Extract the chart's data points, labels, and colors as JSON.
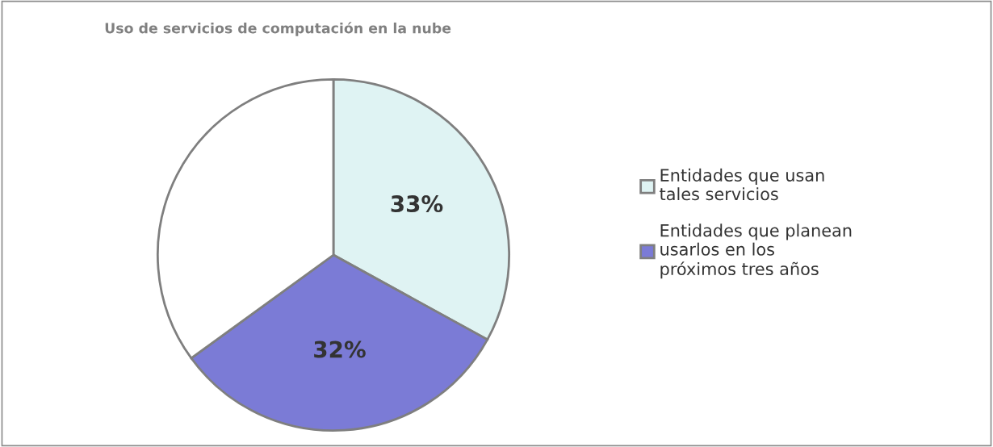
{
  "chart_data": {
    "type": "pie",
    "title": "Uso de servicios de computación en la nube",
    "categories": [
      "Entidades que usan\ntales servicios",
      "Entidades que planean\nusarlos en los\npróximos tres años",
      null
    ],
    "values": [
      33,
      32,
      35
    ],
    "colors": [
      "#dff3f3",
      "#7b7bd6",
      "#ffffff"
    ],
    "value_labels": [
      "33%",
      "32%",
      null
    ],
    "legend": "right"
  }
}
